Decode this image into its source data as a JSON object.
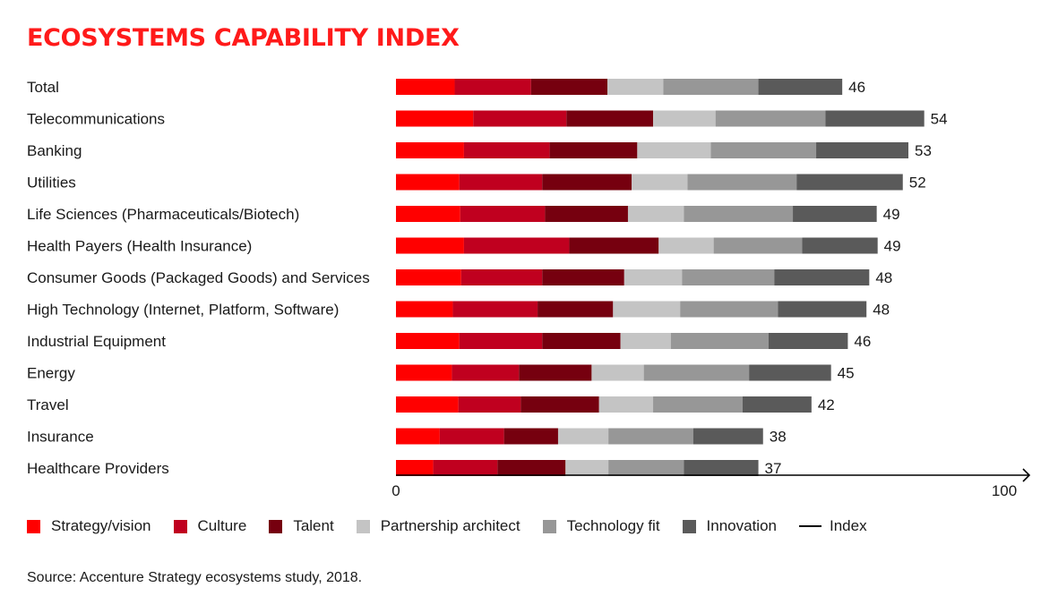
{
  "title": "ECOSYSTEMS CAPABILITY INDEX",
  "source": "Source: Accenture Strategy ecosystems study, 2018.",
  "chart_data": {
    "type": "bar",
    "orientation": "horizontal",
    "stacked": true,
    "xlim": [
      0,
      100
    ],
    "x_ticks": [
      "0",
      "100"
    ],
    "categories": [
      "Total",
      "Telecommunications",
      "Banking",
      "Utilities",
      "Life Sciences (Pharmaceuticals/Biotech)",
      "Health Payers (Health Insurance)",
      "Consumer Goods (Packaged Goods) and Services",
      "High Technology (Internet, Platform, Software)",
      "Industrial Equipment",
      "Energy",
      "Travel",
      "Insurance",
      "Healthcare Providers"
    ],
    "series": [
      {
        "name": "Strategy/vision",
        "color": "#ff0000",
        "values": [
          6.3,
          8.3,
          7.3,
          6.8,
          6.9,
          7.3,
          7.0,
          6.1,
          6.8,
          6.0,
          6.7,
          4.7,
          4.0
        ]
      },
      {
        "name": "Culture",
        "color": "#c0001f",
        "values": [
          8.2,
          10.0,
          9.2,
          8.9,
          9.1,
          11.3,
          8.7,
          9.1,
          8.9,
          7.2,
          6.7,
          6.9,
          6.9
        ]
      },
      {
        "name": "Talent",
        "color": "#76000f",
        "values": [
          8.2,
          9.3,
          9.4,
          9.6,
          8.9,
          9.6,
          8.8,
          8.1,
          8.4,
          7.8,
          8.4,
          5.8,
          7.3
        ]
      },
      {
        "name": "Partnership architect",
        "color": "#c4c4c4",
        "values": [
          6.0,
          6.7,
          7.9,
          6.0,
          6.0,
          5.9,
          6.2,
          7.2,
          5.4,
          5.6,
          5.8,
          5.4,
          4.6
        ]
      },
      {
        "name": "Technology fit",
        "color": "#979797",
        "values": [
          10.2,
          11.8,
          11.3,
          11.7,
          11.7,
          9.5,
          9.9,
          10.5,
          10.5,
          11.3,
          9.6,
          9.1,
          8.1
        ]
      },
      {
        "name": "Innovation",
        "color": "#5a5a5a",
        "values": [
          9.0,
          10.6,
          9.9,
          11.4,
          9.0,
          8.1,
          10.2,
          9.5,
          8.5,
          8.8,
          7.4,
          7.5,
          8.0
        ]
      }
    ],
    "index": {
      "name": "Index",
      "values": [
        46,
        54,
        53,
        52,
        49,
        49,
        48,
        48,
        46,
        45,
        42,
        38,
        37
      ]
    },
    "legend": {
      "position": "bottom"
    },
    "grid": false
  }
}
